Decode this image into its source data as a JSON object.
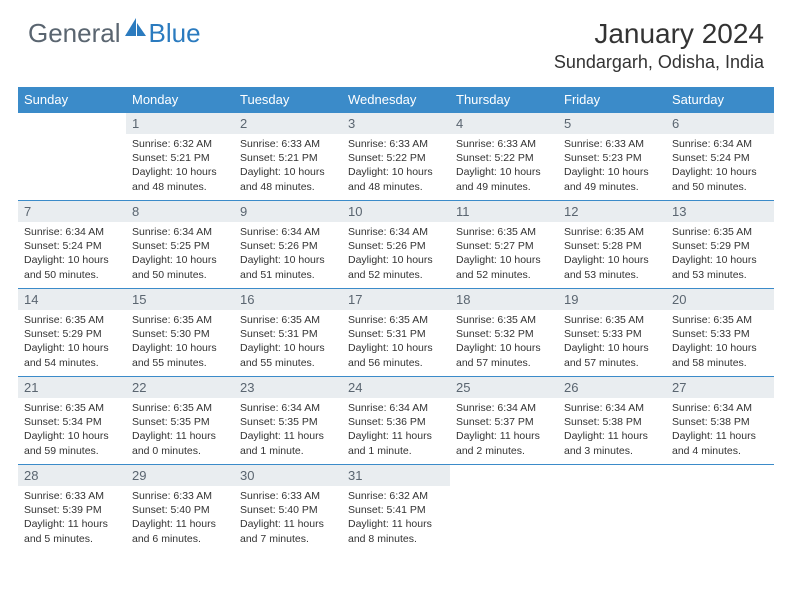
{
  "logo": {
    "general": "General",
    "blue": "Blue"
  },
  "title": "January 2024",
  "location": "Sundargarh, Odisha, India",
  "colors": {
    "header_bg": "#3b8bc9",
    "header_text": "#ffffff",
    "daynum_bg": "#e9edf0",
    "daynum_text": "#5a6570",
    "border": "#3b8bc9",
    "logo_gray": "#5a6570",
    "logo_blue": "#2b7bbf"
  },
  "weekdays": [
    "Sunday",
    "Monday",
    "Tuesday",
    "Wednesday",
    "Thursday",
    "Friday",
    "Saturday"
  ],
  "weeks": [
    [
      {
        "n": "",
        "sr": "",
        "ss": "",
        "dl": ""
      },
      {
        "n": "1",
        "sr": "Sunrise: 6:32 AM",
        "ss": "Sunset: 5:21 PM",
        "dl": "Daylight: 10 hours and 48 minutes."
      },
      {
        "n": "2",
        "sr": "Sunrise: 6:33 AM",
        "ss": "Sunset: 5:21 PM",
        "dl": "Daylight: 10 hours and 48 minutes."
      },
      {
        "n": "3",
        "sr": "Sunrise: 6:33 AM",
        "ss": "Sunset: 5:22 PM",
        "dl": "Daylight: 10 hours and 48 minutes."
      },
      {
        "n": "4",
        "sr": "Sunrise: 6:33 AM",
        "ss": "Sunset: 5:22 PM",
        "dl": "Daylight: 10 hours and 49 minutes."
      },
      {
        "n": "5",
        "sr": "Sunrise: 6:33 AM",
        "ss": "Sunset: 5:23 PM",
        "dl": "Daylight: 10 hours and 49 minutes."
      },
      {
        "n": "6",
        "sr": "Sunrise: 6:34 AM",
        "ss": "Sunset: 5:24 PM",
        "dl": "Daylight: 10 hours and 50 minutes."
      }
    ],
    [
      {
        "n": "7",
        "sr": "Sunrise: 6:34 AM",
        "ss": "Sunset: 5:24 PM",
        "dl": "Daylight: 10 hours and 50 minutes."
      },
      {
        "n": "8",
        "sr": "Sunrise: 6:34 AM",
        "ss": "Sunset: 5:25 PM",
        "dl": "Daylight: 10 hours and 50 minutes."
      },
      {
        "n": "9",
        "sr": "Sunrise: 6:34 AM",
        "ss": "Sunset: 5:26 PM",
        "dl": "Daylight: 10 hours and 51 minutes."
      },
      {
        "n": "10",
        "sr": "Sunrise: 6:34 AM",
        "ss": "Sunset: 5:26 PM",
        "dl": "Daylight: 10 hours and 52 minutes."
      },
      {
        "n": "11",
        "sr": "Sunrise: 6:35 AM",
        "ss": "Sunset: 5:27 PM",
        "dl": "Daylight: 10 hours and 52 minutes."
      },
      {
        "n": "12",
        "sr": "Sunrise: 6:35 AM",
        "ss": "Sunset: 5:28 PM",
        "dl": "Daylight: 10 hours and 53 minutes."
      },
      {
        "n": "13",
        "sr": "Sunrise: 6:35 AM",
        "ss": "Sunset: 5:29 PM",
        "dl": "Daylight: 10 hours and 53 minutes."
      }
    ],
    [
      {
        "n": "14",
        "sr": "Sunrise: 6:35 AM",
        "ss": "Sunset: 5:29 PM",
        "dl": "Daylight: 10 hours and 54 minutes."
      },
      {
        "n": "15",
        "sr": "Sunrise: 6:35 AM",
        "ss": "Sunset: 5:30 PM",
        "dl": "Daylight: 10 hours and 55 minutes."
      },
      {
        "n": "16",
        "sr": "Sunrise: 6:35 AM",
        "ss": "Sunset: 5:31 PM",
        "dl": "Daylight: 10 hours and 55 minutes."
      },
      {
        "n": "17",
        "sr": "Sunrise: 6:35 AM",
        "ss": "Sunset: 5:31 PM",
        "dl": "Daylight: 10 hours and 56 minutes."
      },
      {
        "n": "18",
        "sr": "Sunrise: 6:35 AM",
        "ss": "Sunset: 5:32 PM",
        "dl": "Daylight: 10 hours and 57 minutes."
      },
      {
        "n": "19",
        "sr": "Sunrise: 6:35 AM",
        "ss": "Sunset: 5:33 PM",
        "dl": "Daylight: 10 hours and 57 minutes."
      },
      {
        "n": "20",
        "sr": "Sunrise: 6:35 AM",
        "ss": "Sunset: 5:33 PM",
        "dl": "Daylight: 10 hours and 58 minutes."
      }
    ],
    [
      {
        "n": "21",
        "sr": "Sunrise: 6:35 AM",
        "ss": "Sunset: 5:34 PM",
        "dl": "Daylight: 10 hours and 59 minutes."
      },
      {
        "n": "22",
        "sr": "Sunrise: 6:35 AM",
        "ss": "Sunset: 5:35 PM",
        "dl": "Daylight: 11 hours and 0 minutes."
      },
      {
        "n": "23",
        "sr": "Sunrise: 6:34 AM",
        "ss": "Sunset: 5:35 PM",
        "dl": "Daylight: 11 hours and 1 minute."
      },
      {
        "n": "24",
        "sr": "Sunrise: 6:34 AM",
        "ss": "Sunset: 5:36 PM",
        "dl": "Daylight: 11 hours and 1 minute."
      },
      {
        "n": "25",
        "sr": "Sunrise: 6:34 AM",
        "ss": "Sunset: 5:37 PM",
        "dl": "Daylight: 11 hours and 2 minutes."
      },
      {
        "n": "26",
        "sr": "Sunrise: 6:34 AM",
        "ss": "Sunset: 5:38 PM",
        "dl": "Daylight: 11 hours and 3 minutes."
      },
      {
        "n": "27",
        "sr": "Sunrise: 6:34 AM",
        "ss": "Sunset: 5:38 PM",
        "dl": "Daylight: 11 hours and 4 minutes."
      }
    ],
    [
      {
        "n": "28",
        "sr": "Sunrise: 6:33 AM",
        "ss": "Sunset: 5:39 PM",
        "dl": "Daylight: 11 hours and 5 minutes."
      },
      {
        "n": "29",
        "sr": "Sunrise: 6:33 AM",
        "ss": "Sunset: 5:40 PM",
        "dl": "Daylight: 11 hours and 6 minutes."
      },
      {
        "n": "30",
        "sr": "Sunrise: 6:33 AM",
        "ss": "Sunset: 5:40 PM",
        "dl": "Daylight: 11 hours and 7 minutes."
      },
      {
        "n": "31",
        "sr": "Sunrise: 6:32 AM",
        "ss": "Sunset: 5:41 PM",
        "dl": "Daylight: 11 hours and 8 minutes."
      },
      {
        "n": "",
        "sr": "",
        "ss": "",
        "dl": ""
      },
      {
        "n": "",
        "sr": "",
        "ss": "",
        "dl": ""
      },
      {
        "n": "",
        "sr": "",
        "ss": "",
        "dl": ""
      }
    ]
  ]
}
